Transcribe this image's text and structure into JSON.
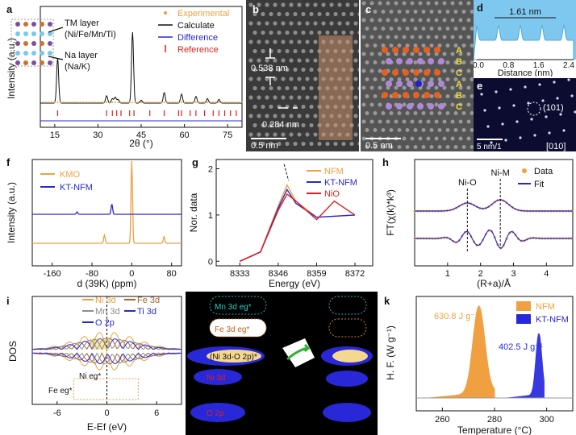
{
  "colors": {
    "orange": "#f0a040",
    "blue": "#2828d8",
    "red": "#e02020",
    "black": "#111111",
    "gray": "#8c8c8c",
    "brown": "#a8642c",
    "lightblue": "#78c8f0"
  },
  "panel_labels": [
    "a",
    "b",
    "c",
    "d",
    "e",
    "f",
    "g",
    "h",
    "i",
    "k"
  ],
  "a": {
    "tm_layer": "TM layer",
    "tm_comp": "(Ni/Fe/Mn/Ti)",
    "na_layer": "Na layer",
    "na_comp": "(Na/K)",
    "legend": [
      "Experimental",
      "Calculate",
      "Difference",
      "Reference"
    ],
    "ylabel": "Intensity (a.u.)",
    "xlabel": "2θ (°)",
    "xticks": [
      "15",
      "30",
      "45",
      "60",
      "75"
    ]
  },
  "b": {
    "d1": "0.538 nm",
    "d2": "0.284 nm",
    "scale": "0.5 nm"
  },
  "c": {
    "scale": "0.5 nm",
    "stacking": [
      "A",
      "B",
      "C",
      "A",
      "B",
      "C"
    ]
  },
  "d": {
    "distance": "1.61 nm",
    "xlabel": "Distance (nm)",
    "xticks": [
      "0.0",
      "0.8",
      "1.6",
      "2.4"
    ]
  },
  "e": {
    "spot": "(101)",
    "zone": "[010]",
    "scale": "5 nm/1"
  },
  "f": {
    "legend": [
      "KMO",
      "KT-NFM"
    ],
    "ylabel": "Intensity (a.u.)",
    "xlabel": "d (39K) (ppm)",
    "xticks": [
      "-160",
      "-80",
      "0",
      "80"
    ]
  },
  "g": {
    "legend": [
      "NFM",
      "KT-NFM",
      "NiO"
    ],
    "ylabel": "Nor. data",
    "xlabel": "Energy (eV)",
    "xticks": [
      "8333",
      "8346",
      "8359",
      "8372"
    ],
    "yticks": [
      "0",
      "1",
      "2"
    ]
  },
  "h": {
    "legend": [
      "Data",
      "Fit"
    ],
    "ylabel": "FT(χ(k)*k³)",
    "xlabel": "(R+a)/Å",
    "xticks": [
      "1",
      "2",
      "3",
      "4"
    ],
    "peaks": [
      "Ni-O",
      "Ni-M"
    ]
  },
  "i": {
    "legend": [
      "Ni 3d",
      "Fe 3d",
      "Mn 3d",
      "Ti 3d",
      "O 2p"
    ],
    "ylabel": "DOS",
    "xlabel": "E-Ef (eV)",
    "xticks": [
      "-6",
      "0",
      "6"
    ],
    "ni_eg": "Ni eg*",
    "fe_eg": "Fe eg*"
  },
  "j": {
    "labels": [
      "Mn 3d eg*",
      "Fe 3d eg*",
      "(Ni 3d-O 2p)*",
      "Ni 3d",
      "O 2p"
    ]
  },
  "k": {
    "legend": [
      "NFM",
      "KT-NFM"
    ],
    "ylabel": "H. F. (W g⁻¹)",
    "xlabel": "Temperature (°C)",
    "xticks": [
      "260",
      "280",
      "300"
    ],
    "nfm_heat": "630.8 J g⁻¹",
    "kt_heat": "402.5 J g⁻¹"
  },
  "chart_data": [
    {
      "type": "line",
      "panel": "a",
      "title": "",
      "xlabel": "2θ (°)",
      "ylabel": "Intensity (a.u.)",
      "xlim": [
        10,
        80
      ],
      "series": [
        {
          "name": "Experimental",
          "x": [
            16,
            33,
            35,
            36,
            37,
            42,
            45,
            53,
            59,
            64,
            68,
            72
          ],
          "values": [
            60,
            10,
            6,
            8,
            5,
            95,
            4,
            14,
            12,
            9,
            6,
            5
          ]
        }
      ]
    },
    {
      "type": "line",
      "panel": "f",
      "xlabel": "d (39K) (ppm)",
      "ylabel": "Intensity (a.u.)",
      "xlim": [
        -200,
        100
      ],
      "series": [
        {
          "name": "KMO",
          "x": [
            -55,
            0,
            65
          ],
          "values": [
            10,
            100,
            8
          ]
        },
        {
          "name": "KT-NFM",
          "x": [
            -110,
            -40
          ],
          "values": [
            8,
            35
          ]
        }
      ]
    },
    {
      "type": "line",
      "panel": "g",
      "xlabel": "Energy (eV)",
      "ylabel": "Nor. data",
      "xlim": [
        8325,
        8378
      ],
      "ylim": [
        -0.1,
        2.2
      ],
      "series": [
        {
          "name": "NFM",
          "x": [
            8333,
            8340,
            8346,
            8349,
            8352,
            8359,
            8372
          ],
          "values": [
            0,
            0.2,
            1.2,
            1.65,
            1.3,
            0.95,
            1.0
          ]
        },
        {
          "name": "KT-NFM",
          "x": [
            8333,
            8340,
            8346,
            8349,
            8352,
            8359,
            8372
          ],
          "values": [
            0,
            0.2,
            1.15,
            1.55,
            1.25,
            0.95,
            1.0
          ]
        },
        {
          "name": "NiO",
          "x": [
            8333,
            8340,
            8346,
            8349,
            8352,
            8359,
            8365,
            8372
          ],
          "values": [
            0,
            0.2,
            1.1,
            1.45,
            1.3,
            0.9,
            1.3,
            1.0
          ]
        }
      ]
    },
    {
      "type": "line",
      "panel": "k",
      "xlabel": "Temperature (°C)",
      "ylabel": "H. F. (W g⁻¹)",
      "xlim": [
        250,
        310
      ],
      "series": [
        {
          "name": "NFM",
          "x": [
            255,
            265,
            270,
            274,
            276,
            280
          ],
          "values": [
            0,
            1,
            4,
            20,
            8,
            0
          ]
        },
        {
          "name": "KT-NFM",
          "x": [
            285,
            292,
            296,
            297,
            299
          ],
          "values": [
            0,
            1,
            6,
            14,
            0
          ]
        }
      ]
    }
  ]
}
